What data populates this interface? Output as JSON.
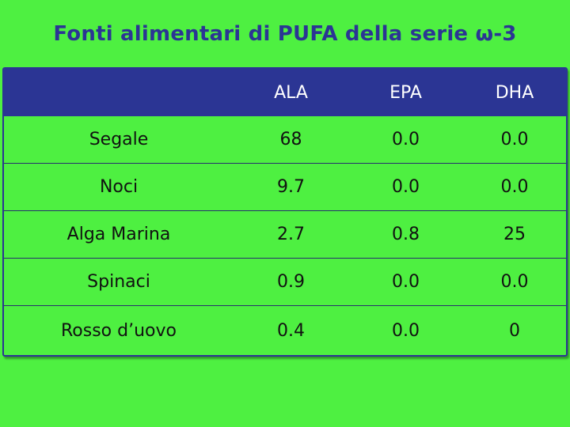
{
  "title": "Fonti alimentari di PUFA della serie ω-3",
  "table": {
    "headers": [
      "",
      "ALA",
      "EPA",
      "DHA"
    ],
    "rows": [
      [
        "Segale",
        "68",
        "0.0",
        "0.0"
      ],
      [
        "Noci",
        "9.7",
        "0.0",
        "0.0"
      ],
      [
        "Alga Marina",
        "2.7",
        "0.8",
        "25"
      ],
      [
        "Spinaci",
        "0.9",
        "0.0",
        "0.0"
      ],
      [
        "Rosso d’uovo",
        "0.4",
        "0.0",
        "0"
      ]
    ]
  },
  "colors": {
    "background": "#4ef041",
    "accent": "#2b3594",
    "header_text": "#ffffff",
    "body_text": "#111111"
  }
}
